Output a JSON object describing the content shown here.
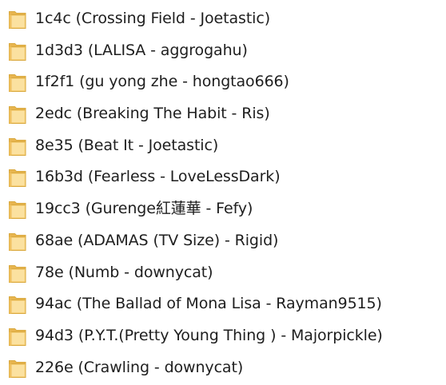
{
  "folders": [
    {
      "name": "1c4c (Crossing Field - Joetastic)",
      "icon": "folder-icon"
    },
    {
      "name": "1d3d3 (LALISA - aggrogahu)",
      "icon": "folder-icon"
    },
    {
      "name": "1f2f1 (gu yong zhe - hongtao666)",
      "icon": "folder-icon"
    },
    {
      "name": "2edc (Breaking The Habit - Ris)",
      "icon": "folder-icon"
    },
    {
      "name": "8e35 (Beat It - Joetastic)",
      "icon": "folder-icon"
    },
    {
      "name": "16b3d (Fearless - LoveLessDark)",
      "icon": "folder-icon"
    },
    {
      "name": "19cc3 (Gurenge紅蓮華 - Fefy)",
      "icon": "folder-icon"
    },
    {
      "name": "68ae (ADAMAS (TV Size) - Rigid)",
      "icon": "folder-icon"
    },
    {
      "name": "78e (Numb - downycat)",
      "icon": "folder-icon"
    },
    {
      "name": "94ac (The Ballad of Mona Lisa - Rayman9515)",
      "icon": "folder-icon"
    },
    {
      "name": "94d3 (P.Y.T.(Pretty Young Thing ) - Majorpickle)",
      "icon": "folder-icon"
    },
    {
      "name": "226e (Crawling - downycat)",
      "icon": "folder-icon"
    }
  ],
  "colors": {
    "folder_body": "#f4c86a",
    "folder_front": "#fbe1a0",
    "folder_edge": "#d9a93f",
    "text": "#1e1e1e"
  }
}
